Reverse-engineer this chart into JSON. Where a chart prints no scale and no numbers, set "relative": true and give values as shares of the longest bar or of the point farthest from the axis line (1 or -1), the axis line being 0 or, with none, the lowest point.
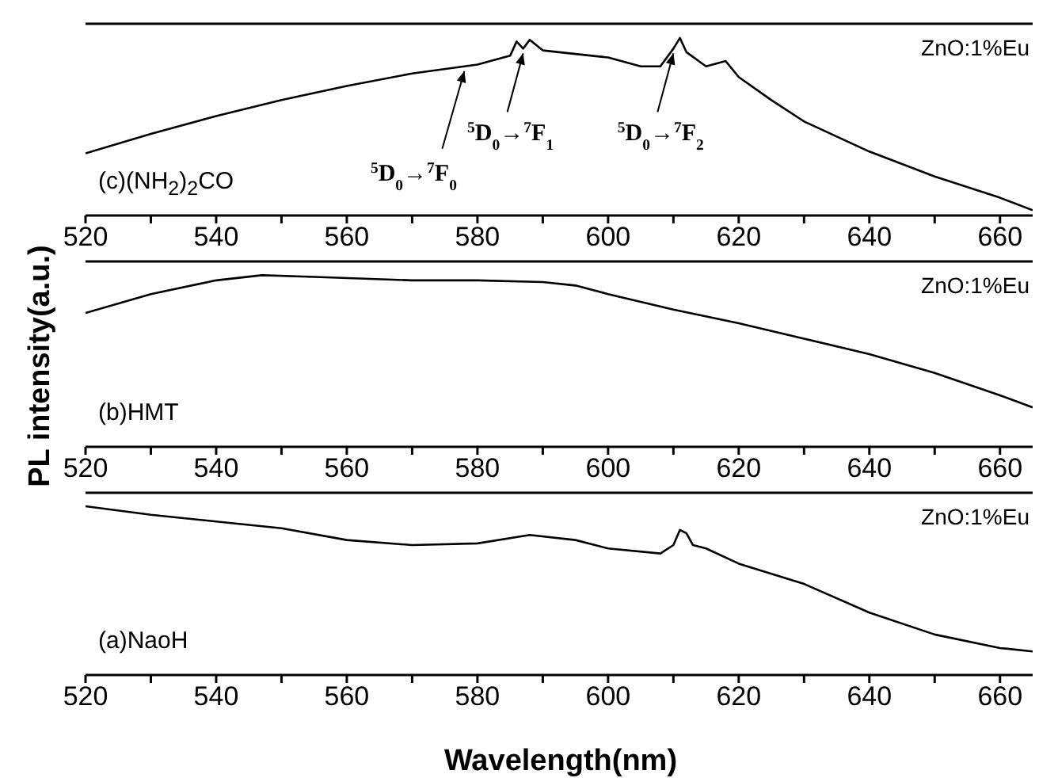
{
  "chart_data": [
    {
      "type": "line",
      "relative": true,
      "x": [
        520,
        530,
        540,
        550,
        560,
        570,
        580,
        585,
        586,
        587,
        588,
        590,
        595,
        600,
        605,
        608,
        610,
        611,
        612,
        615,
        617,
        618,
        620,
        625,
        630,
        640,
        650,
        660,
        665
      ],
      "series": [
        {
          "color": "#000000",
          "values": [
            0.35,
            0.46,
            0.56,
            0.65,
            0.73,
            0.8,
            0.85,
            0.9,
            0.98,
            0.94,
            0.99,
            0.93,
            0.91,
            0.89,
            0.84,
            0.84,
            0.94,
            1,
            0.92,
            0.84,
            0.86,
            0.87,
            0.78,
            0.65,
            0.53,
            0.36,
            0.22,
            0.1,
            0.03
          ]
        }
      ],
      "xlim": [
        520,
        665
      ],
      "xticks": [
        520,
        {
          "value": 530,
          "label": null
        },
        540,
        {
          "value": 550,
          "label": null
        },
        560,
        {
          "value": 570,
          "label": null
        },
        580,
        {
          "value": 590,
          "label": null
        },
        600,
        {
          "value": 610,
          "label": null
        },
        620,
        {
          "value": 630,
          "label": null
        },
        640,
        {
          "value": 650,
          "label": null
        },
        660
      ],
      "grid": false,
      "legend": false,
      "marker": "none",
      "line_style": "solid",
      "annotations": [
        "ZnO:1%Eu",
        "(c)(NH$_{2}$)$_{2}$CO",
        {
          "text": "$^{5}$D$_{0}$→$^{7}$F$_{0}$",
          "x": 578,
          "y": 0.84
        },
        {
          "text": "$^{5}$D$_{0}$→$^{7}$F$_{1}$",
          "x": 587,
          "y": 0.94
        },
        {
          "text": "$^{5}$D$_{0}$→$^{7}$F$_{2}$",
          "x": 610,
          "y": 0.94
        }
      ]
    },
    {
      "type": "line",
      "relative": true,
      "ylabel": "PL intensity(a.u.)",
      "x": [
        520,
        530,
        540,
        547,
        555,
        570,
        580,
        590,
        595,
        600,
        610,
        620,
        630,
        640,
        650,
        660,
        665
      ],
      "series": [
        {
          "color": "#000000",
          "values": [
            0.78,
            0.89,
            0.97,
            1,
            0.99,
            0.97,
            0.97,
            0.96,
            0.94,
            0.89,
            0.8,
            0.72,
            0.63,
            0.54,
            0.43,
            0.3,
            0.23
          ]
        }
      ],
      "xlim": [
        520,
        665
      ],
      "xticks": [
        520,
        {
          "value": 530,
          "label": null
        },
        540,
        {
          "value": 550,
          "label": null
        },
        560,
        {
          "value": 570,
          "label": null
        },
        580,
        {
          "value": 590,
          "label": null
        },
        600,
        {
          "value": 610,
          "label": null
        },
        620,
        {
          "value": 630,
          "label": null
        },
        640,
        {
          "value": 650,
          "label": null
        },
        660
      ],
      "grid": false,
      "legend": false,
      "marker": "none",
      "line_style": "solid",
      "annotations": [
        "ZnO:1%Eu",
        "(b)HMT"
      ]
    },
    {
      "type": "line",
      "relative": true,
      "xlabel": "Wavelength(nm)",
      "x": [
        520,
        530,
        540,
        550,
        560,
        570,
        580,
        588,
        595,
        600,
        608,
        610,
        611,
        612,
        613,
        615,
        620,
        630,
        640,
        650,
        660,
        665
      ],
      "series": [
        {
          "color": "#000000",
          "values": [
            1,
            0.95,
            0.91,
            0.87,
            0.8,
            0.77,
            0.78,
            0.83,
            0.8,
            0.75,
            0.72,
            0.77,
            0.86,
            0.84,
            0.77,
            0.75,
            0.66,
            0.54,
            0.37,
            0.24,
            0.16,
            0.14
          ]
        }
      ],
      "xlim": [
        520,
        665
      ],
      "xticks": [
        520,
        {
          "value": 530,
          "label": null
        },
        540,
        {
          "value": 550,
          "label": null
        },
        560,
        {
          "value": 570,
          "label": null
        },
        580,
        {
          "value": 590,
          "label": null
        },
        600,
        {
          "value": 610,
          "label": null
        },
        620,
        {
          "value": 630,
          "label": null
        },
        640,
        {
          "value": 650,
          "label": null
        },
        660
      ],
      "grid": false,
      "legend": false,
      "marker": "none",
      "line_style": "solid",
      "annotations": [
        "ZnO:1%Eu",
        "(a)NaoH"
      ]
    }
  ]
}
